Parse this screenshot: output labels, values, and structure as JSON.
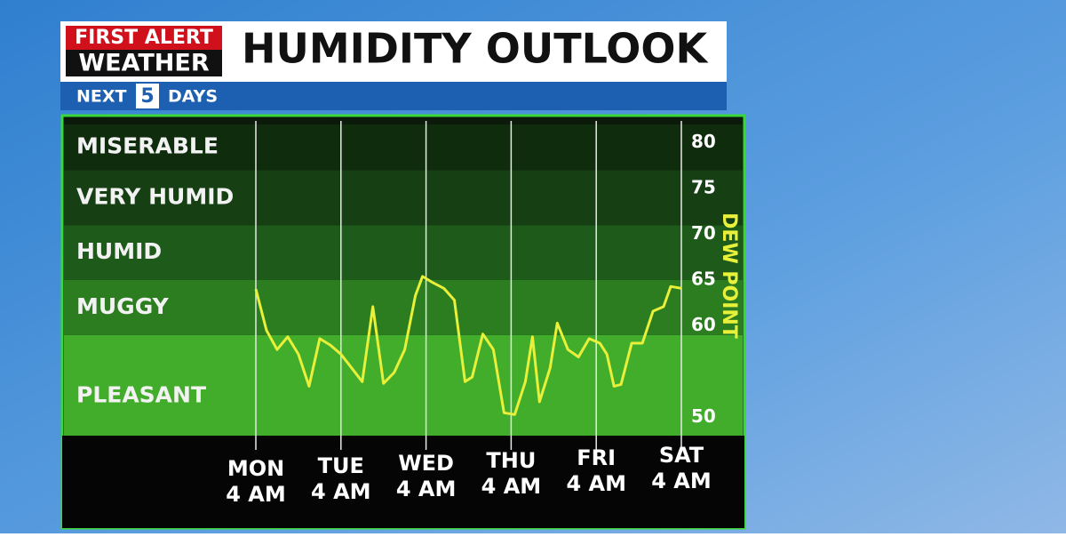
{
  "header": {
    "logo_top": "FIRST ALERT",
    "logo_bottom": "WEATHER",
    "title": "HUMIDITY OUTLOOK",
    "sub_left": "NEXT",
    "sub_num": "5",
    "sub_right": "DAYS"
  },
  "chart_data": {
    "type": "line",
    "y_label": "DEW POINT",
    "color": "#e8f03a",
    "x": [
      0,
      3,
      6,
      9,
      12,
      15,
      18,
      21,
      24,
      27,
      30,
      33,
      36,
      39,
      42,
      45,
      47,
      50,
      53,
      56,
      59,
      61,
      64,
      67,
      70,
      73,
      76,
      78,
      80,
      83,
      85,
      88,
      91,
      94,
      97,
      99,
      101,
      103,
      106,
      109,
      112,
      115,
      117,
      120
    ],
    "values": [
      64,
      59.5,
      57.4,
      58.8,
      56.9,
      53.4,
      58.6,
      57.9,
      56.9,
      55.4,
      53.9,
      62.1,
      53.7,
      54.9,
      57.4,
      63.3,
      65.4,
      64.7,
      64.1,
      62.8,
      53.9,
      54.4,
      59.1,
      57.4,
      50.5,
      50.3,
      53.9,
      58.8,
      51.7,
      55.4,
      60.3,
      57.4,
      56.6,
      58.6,
      58.1,
      56.9,
      53.4,
      53.6,
      58.1,
      58.1,
      61.6,
      62.1,
      64.3,
      64.1
    ],
    "xlim": [
      0,
      120
    ],
    "xticks": [
      {
        "value": 0,
        "label": "MON"
      },
      {
        "value": 24,
        "label": "TUE"
      },
      {
        "value": 48,
        "label": "WED"
      },
      {
        "value": 72,
        "label": "THU"
      },
      {
        "value": 96,
        "label": "FRI"
      },
      {
        "value": 120,
        "label": "SAT"
      }
    ],
    "xtick_sublabels": [
      "4 AM",
      "4 AM",
      "4 AM",
      "4 AM",
      "4 AM",
      "4 AM"
    ],
    "ylim": [
      48,
      82
    ],
    "yticks": [
      50,
      60,
      65,
      70,
      75,
      80
    ],
    "zones": [
      {
        "label": "PLEASANT",
        "from": 48,
        "to": 59,
        "color": "#42ad2b"
      },
      {
        "label": "MUGGY",
        "from": 59,
        "to": 65,
        "color": "#2b7d20"
      },
      {
        "label": "HUMID",
        "from": 65,
        "to": 71,
        "color": "#1e5a19"
      },
      {
        "label": "VERY HUMID",
        "from": 71,
        "to": 77,
        "color": "#163f13"
      },
      {
        "label": "MISERABLE",
        "from": 77,
        "to": 82,
        "color": "#0f2c0d"
      }
    ]
  }
}
